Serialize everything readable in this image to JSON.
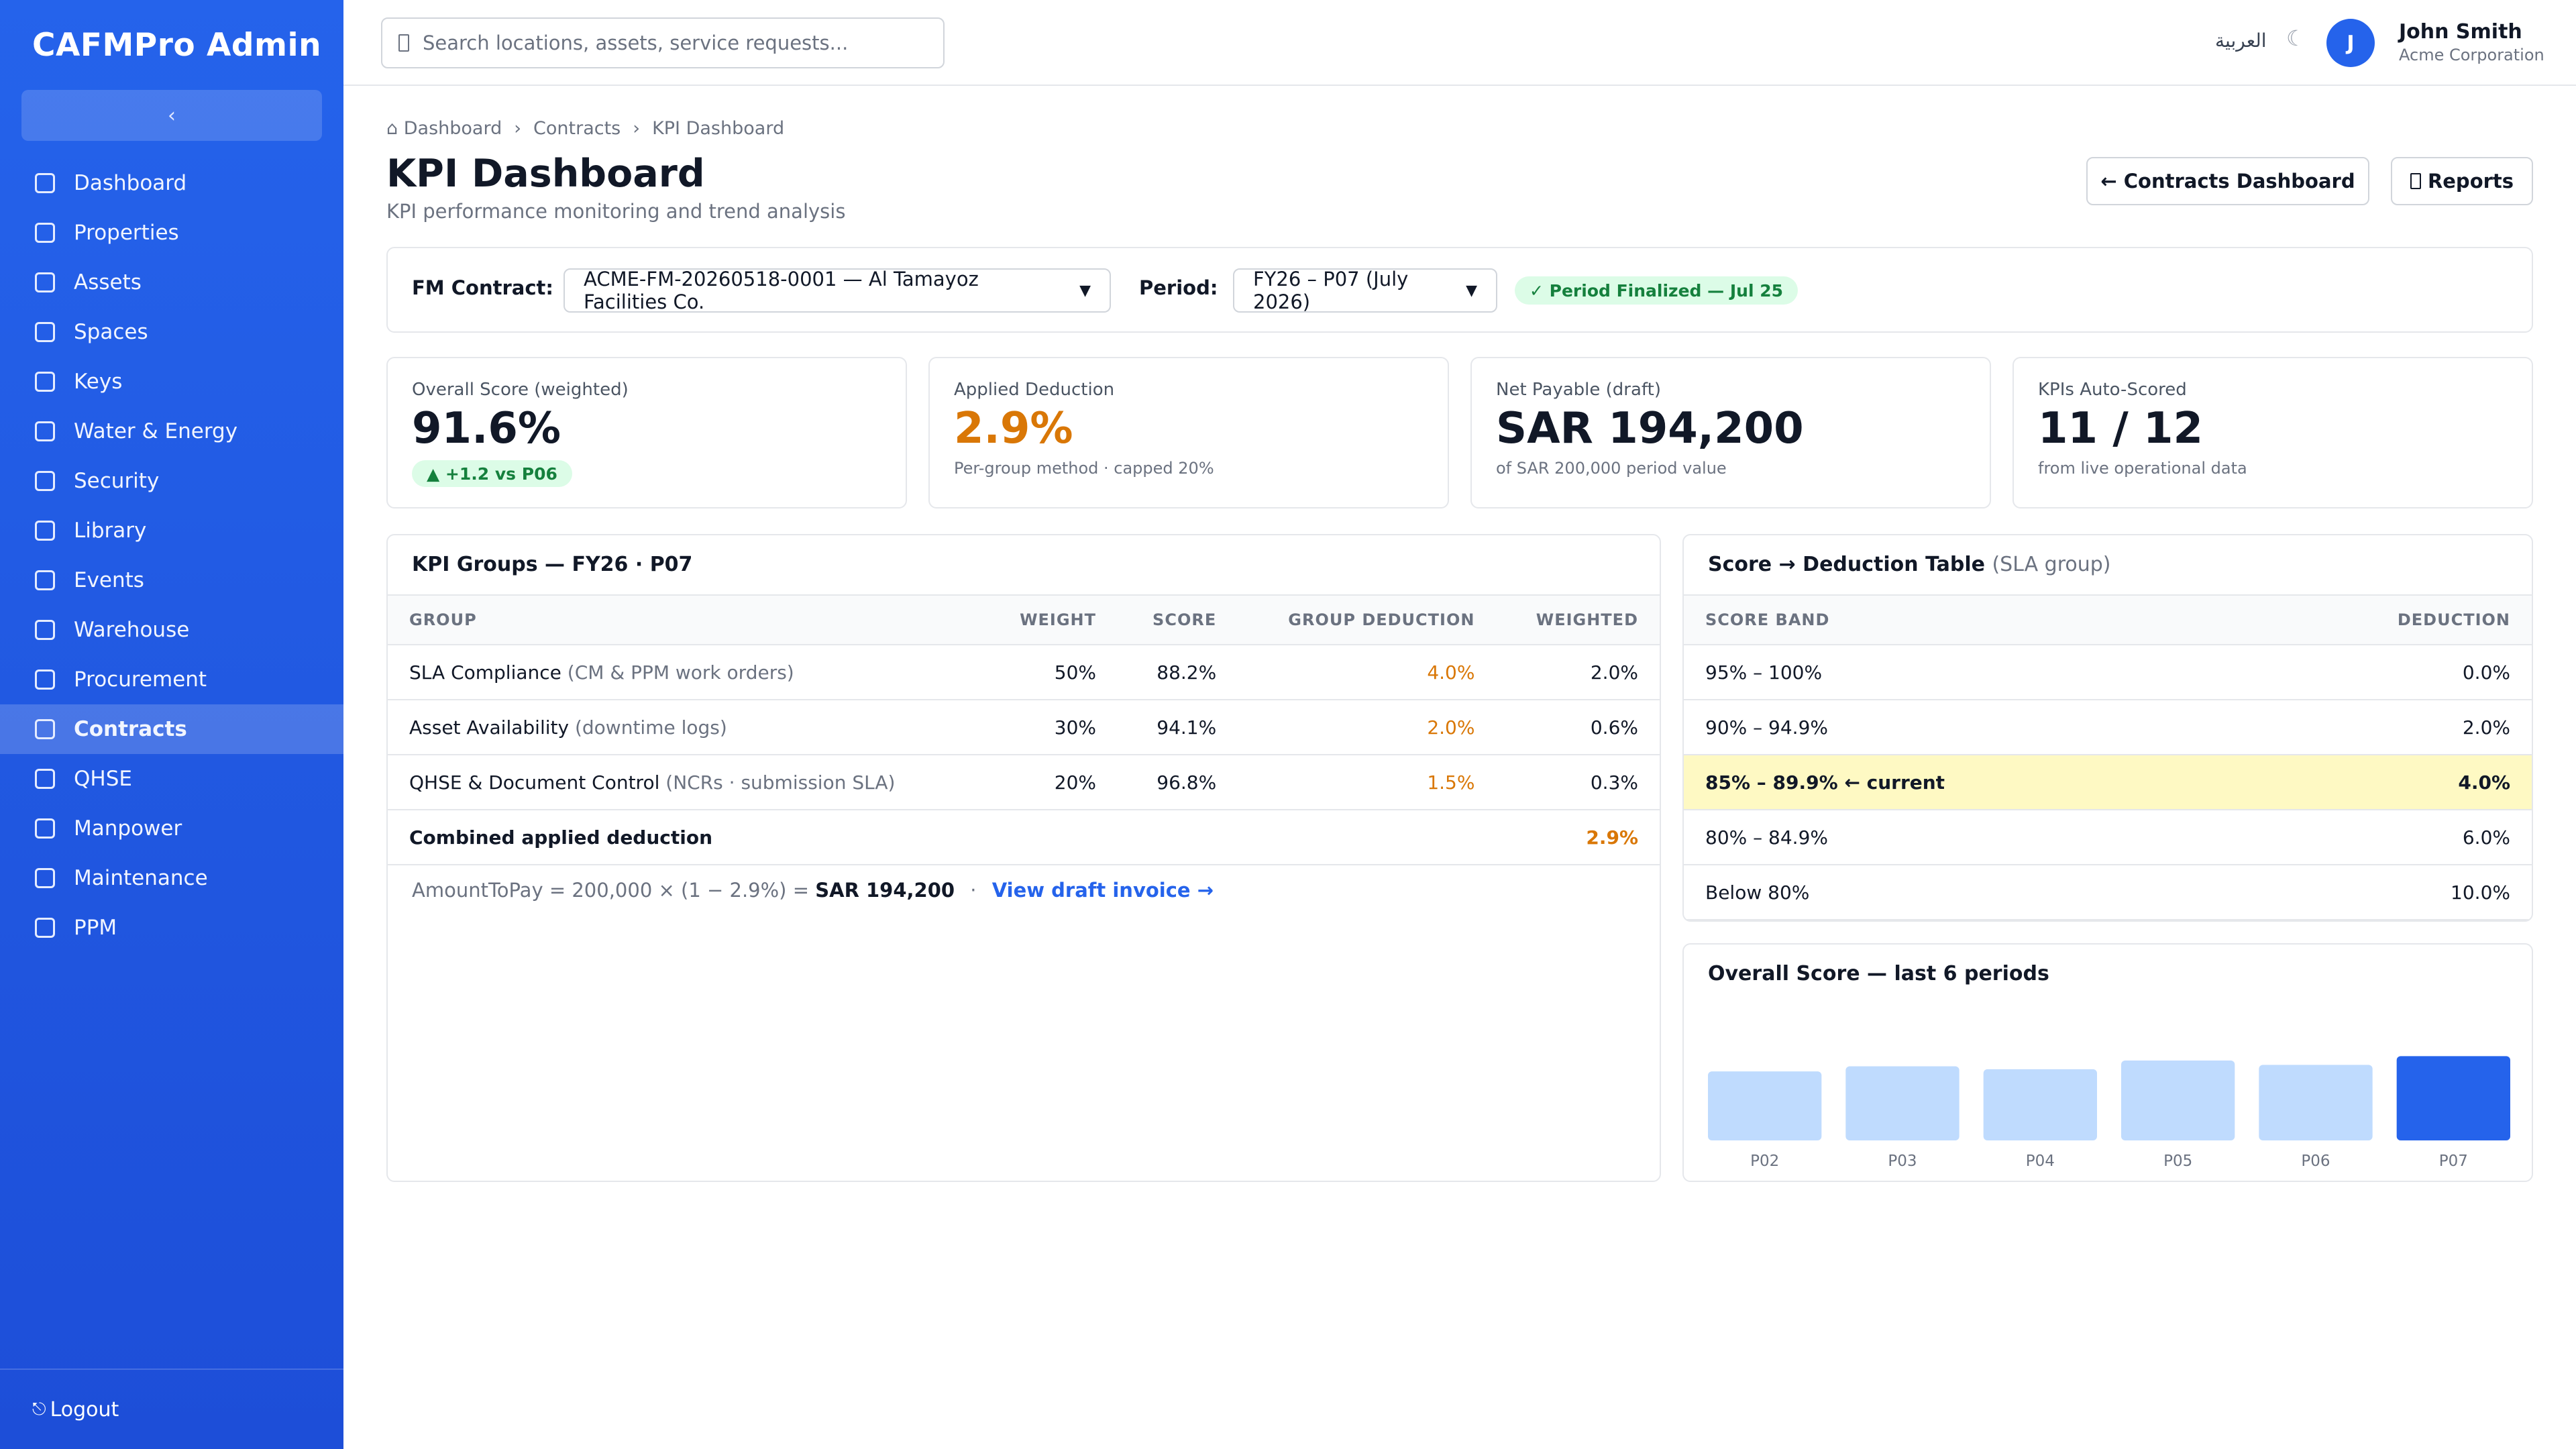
{
  "sidebar": {
    "brand": "CAFMPro Admin",
    "collapse_glyph": "‹",
    "items": [
      {
        "label": "Dashboard"
      },
      {
        "label": "Properties"
      },
      {
        "label": "Assets"
      },
      {
        "label": "Spaces"
      },
      {
        "label": "Keys"
      },
      {
        "label": "Water & Energy"
      },
      {
        "label": "Security"
      },
      {
        "label": "Library"
      },
      {
        "label": "Events"
      },
      {
        "label": "Warehouse"
      },
      {
        "label": "Procurement"
      },
      {
        "label": "Contracts",
        "active": true
      },
      {
        "label": "QHSE"
      },
      {
        "label": "Manpower"
      },
      {
        "label": "Maintenance"
      },
      {
        "label": "PPM"
      }
    ],
    "logout_label": "Logout"
  },
  "topbar": {
    "search_placeholder": "Search locations, assets, service requests...",
    "language": "العربية",
    "theme_glyph": "☾",
    "avatar_initial": "J",
    "user_name": "John Smith",
    "user_org": "Acme Corporation"
  },
  "breadcrumb": [
    "Dashboard",
    "Contracts",
    "KPI Dashboard"
  ],
  "page": {
    "title": "KPI Dashboard",
    "subtitle": "KPI performance monitoring and trend analysis",
    "contracts_button": "← Contracts Dashboard",
    "reports_button": "Reports"
  },
  "filters": {
    "contract_label": "FM Contract:",
    "contract_value": "ACME-FM-20260518-0001 — Al Tamayoz Facilities Co.",
    "period_label": "Period:",
    "period_value": "FY26 – P07 (July 2026)",
    "status": "✓ Period Finalized — Jul 25"
  },
  "cards": [
    {
      "label": "Overall Score (weighted)",
      "value": "91.6%",
      "delta": "▲ +1.2 vs P06"
    },
    {
      "label": "Applied Deduction",
      "value": "2.9%",
      "sub": "Per-group method · capped 20%"
    },
    {
      "label": "Net Payable (draft)",
      "value": "SAR 194,200",
      "sub": "of SAR 200,000 period value"
    },
    {
      "label": "KPIs Auto-Scored",
      "value": "11 / 12",
      "sub": "from live operational data"
    }
  ],
  "kpi_groups": {
    "title": "KPI Groups — FY26 · P07",
    "columns": [
      "GROUP",
      "WEIGHT",
      "SCORE",
      "GROUP DEDUCTION",
      "WEIGHTED"
    ],
    "rows": [
      {
        "name": "SLA Compliance",
        "detail": "(CM & PPM work orders)",
        "weight": "50%",
        "score": "88.2%",
        "deduction": "4.0%",
        "weighted": "2.0%"
      },
      {
        "name": "Asset Availability",
        "detail": "(downtime logs)",
        "weight": "30%",
        "score": "94.1%",
        "deduction": "2.0%",
        "weighted": "0.6%"
      },
      {
        "name": "QHSE & Document Control",
        "detail": "(NCRs · submission SLA)",
        "weight": "20%",
        "score": "96.8%",
        "deduction": "1.5%",
        "weighted": "0.3%"
      }
    ],
    "total_label": "Combined applied deduction",
    "total_value": "2.9%",
    "formula_text": "AmountToPay = 200,000 × (1 − 2.9%) = ",
    "formula_result": "SAR 194,200",
    "separator": "·",
    "invoice_link": "View draft invoice →"
  },
  "deduction_table": {
    "title": "Score → Deduction Table",
    "title_note": "(SLA group)",
    "columns": [
      "SCORE BAND",
      "DEDUCTION"
    ],
    "rows": [
      {
        "band": "95% – 100%",
        "deduction": "0.0%"
      },
      {
        "band": "90% – 94.9%",
        "deduction": "2.0%"
      },
      {
        "band": "85% – 89.9% ← current",
        "deduction": "4.0%",
        "current": true
      },
      {
        "band": "80% – 84.9%",
        "deduction": "6.0%"
      },
      {
        "band": "Below 80%",
        "deduction": "10.0%"
      }
    ]
  },
  "trend": {
    "title": "Overall Score — last 6 periods"
  },
  "chart_data": {
    "type": "bar",
    "title": "Overall Score — last 6 periods",
    "categories": [
      "P02",
      "P03",
      "P04",
      "P05",
      "P06",
      "P07"
    ],
    "values": [
      89.5,
      90.2,
      89.8,
      91.0,
      90.4,
      91.6
    ],
    "highlight_index": 5,
    "bar_color": "#bfdbfe",
    "highlight_color": "#2563eb",
    "ylim": [
      80,
      92
    ]
  },
  "colors": {
    "sidebar": "#2563eb",
    "accent": "#2563eb",
    "warning": "#d97706",
    "success": "#15803d",
    "highlight_row": "#fef9c3"
  }
}
